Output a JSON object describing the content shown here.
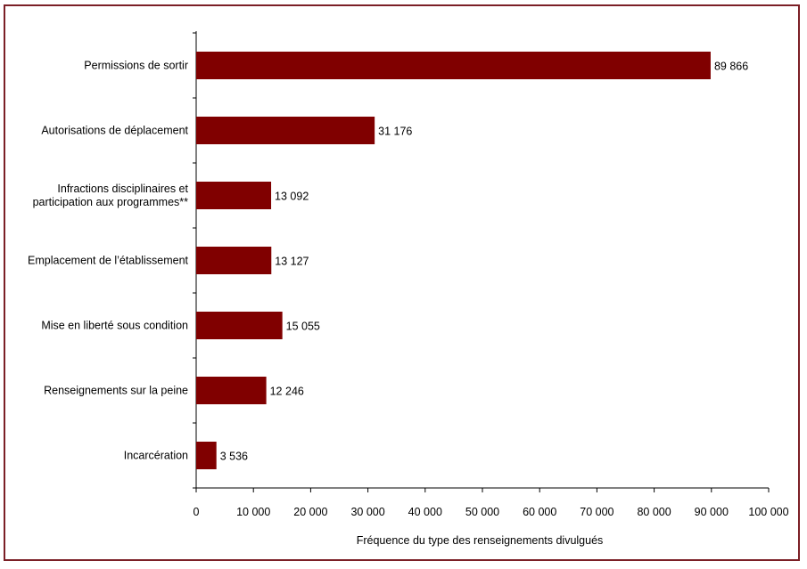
{
  "chart_data": {
    "type": "bar",
    "orientation": "horizontal",
    "categories": [
      "Permissions de sortir",
      "Autorisations de déplacement",
      "Infractions disciplinaires et participation aux programmes**",
      "Emplacement de l’établissement",
      "Mise en liberté sous condition",
      "Renseignements sur la peine",
      "Incarcération"
    ],
    "category_lines": [
      [
        "Permissions de sortir"
      ],
      [
        "Autorisations de déplacement"
      ],
      [
        "Infractions disciplinaires et",
        "participation aux programmes**"
      ],
      [
        "Emplacement de l’établissement"
      ],
      [
        "Mise en liberté sous condition"
      ],
      [
        "Renseignements sur la peine"
      ],
      [
        "Incarcération"
      ]
    ],
    "values": [
      89866,
      31176,
      13092,
      13127,
      15055,
      12246,
      3536
    ],
    "data_labels": [
      "89 866",
      "31 176",
      "13 092",
      "13 127",
      "15 055",
      "12 246",
      "3 536"
    ],
    "xlabel": "Fréquence du type des renseignements divulgués",
    "ylabel": "",
    "xlim": [
      0,
      100000
    ],
    "xticks": [
      0,
      10000,
      20000,
      30000,
      40000,
      50000,
      60000,
      70000,
      80000,
      90000,
      100000
    ],
    "xtick_labels": [
      "0",
      "10 000",
      "20 000",
      "30 000",
      "40 000",
      "50 000",
      "60 000",
      "70 000",
      "80 000",
      "90 000",
      "100 000"
    ],
    "bar_color": "#800000",
    "frame_color": "#7b1f26",
    "grid": false
  }
}
